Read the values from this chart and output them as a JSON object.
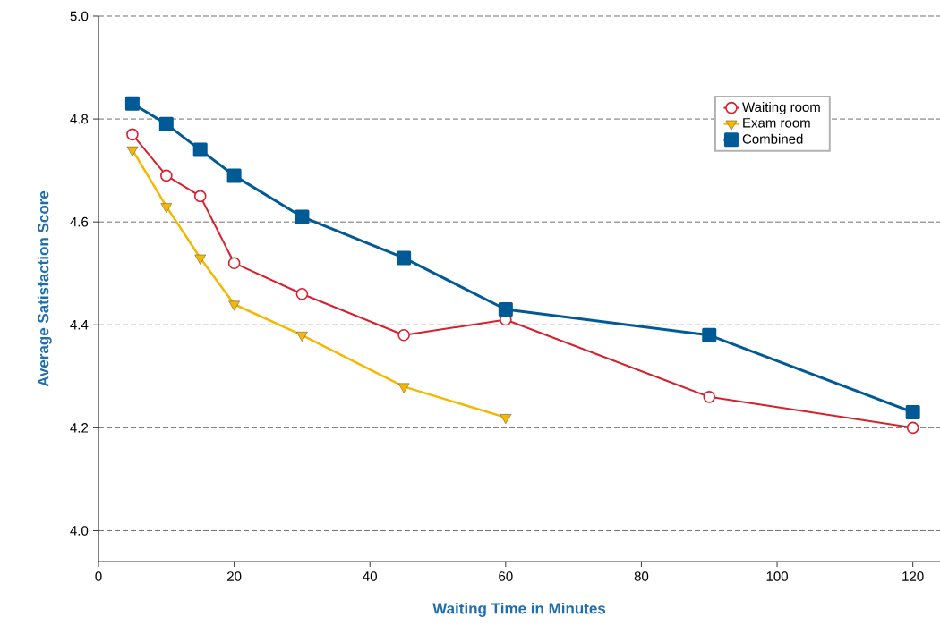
{
  "chart_data": {
    "type": "line",
    "xlabel": "Waiting Time in Minutes",
    "ylabel": "Average Satisfaction Score",
    "xlim": [
      0,
      124
    ],
    "ylim": [
      3.94,
      5.0
    ],
    "xticks": [
      0,
      20,
      40,
      60,
      80,
      100,
      120
    ],
    "yticks": [
      {
        "value": 4.0,
        "label": "4.0"
      },
      {
        "value": 4.2,
        "label": "4.2"
      },
      {
        "value": 4.4,
        "label": "4.4"
      },
      {
        "value": 4.6,
        "label": "4.6"
      },
      {
        "value": 4.8,
        "label": "4.8"
      },
      {
        "value": 5.0,
        "label": "5.0"
      }
    ],
    "grid": "y",
    "legend": "top right",
    "line_style": "solid",
    "series": [
      {
        "name": "Waiting room",
        "color": "#d7202e",
        "marker": "circle",
        "x": [
          5,
          10,
          15,
          20,
          30,
          45,
          60,
          90,
          120
        ],
        "values": [
          4.77,
          4.69,
          4.65,
          4.52,
          4.46,
          4.38,
          4.41,
          4.26,
          4.2
        ]
      },
      {
        "name": "Exam room",
        "color": "#f5b800",
        "marker": "triangle",
        "x": [
          5,
          10,
          15,
          20,
          30,
          45,
          60
        ],
        "values": [
          4.74,
          4.63,
          4.53,
          4.44,
          4.38,
          4.28,
          4.22
        ]
      },
      {
        "name": "Combined",
        "color": "#005a96",
        "marker": "square",
        "x": [
          5,
          10,
          15,
          20,
          30,
          45,
          60,
          90,
          120
        ],
        "values": [
          4.83,
          4.79,
          4.74,
          4.69,
          4.61,
          4.53,
          4.43,
          4.38,
          4.23
        ]
      }
    ]
  }
}
